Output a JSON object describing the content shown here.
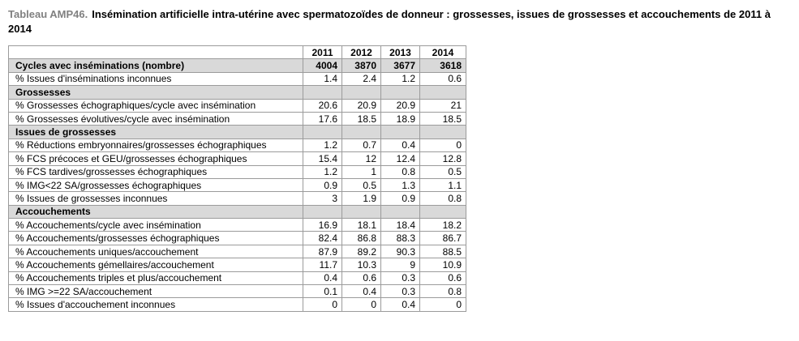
{
  "title": {
    "prefix": "Tableau AMP46.",
    "text": "Insémination artificielle intra-utérine avec spermatozoïdes de donneur : grossesses, issues de grossesses et accouchements de 2011 à 2014"
  },
  "table": {
    "header": {
      "label": "",
      "years": [
        "2011",
        "2012",
        "2013",
        "2014"
      ]
    },
    "rows": [
      {
        "type": "highlight",
        "label": "Cycles avec inséminations (nombre)",
        "values": [
          "4004",
          "3870",
          "3677",
          "3618"
        ]
      },
      {
        "type": "data",
        "label": "% Issues d'inséminations inconnues",
        "values": [
          "1.4",
          "2.4",
          "1.2",
          "0.6"
        ]
      },
      {
        "type": "section",
        "label": "Grossesses",
        "values": [
          "",
          "",
          "",
          ""
        ]
      },
      {
        "type": "data",
        "label": "% Grossesses échographiques/cycle avec insémination",
        "values": [
          "20.6",
          "20.9",
          "20.9",
          "21"
        ]
      },
      {
        "type": "data",
        "label": "% Grossesses évolutives/cycle avec insémination",
        "values": [
          "17.6",
          "18.5",
          "18.9",
          "18.5"
        ]
      },
      {
        "type": "section",
        "label": "Issues de grossesses",
        "values": [
          "",
          "",
          "",
          ""
        ]
      },
      {
        "type": "data",
        "label": "% Réductions embryonnaires/grossesses échographiques",
        "values": [
          "1.2",
          "0.7",
          "0.4",
          "0"
        ]
      },
      {
        "type": "data",
        "label": "% FCS précoces et GEU/grossesses échographiques",
        "values": [
          "15.4",
          "12",
          "12.4",
          "12.8"
        ]
      },
      {
        "type": "data",
        "label": "% FCS tardives/grossesses échographiques",
        "values": [
          "1.2",
          "1",
          "0.8",
          "0.5"
        ]
      },
      {
        "type": "data",
        "label": "% IMG<22 SA/grossesses échographiques",
        "values": [
          "0.9",
          "0.5",
          "1.3",
          "1.1"
        ]
      },
      {
        "type": "data",
        "label": "% Issues de grossesses inconnues",
        "values": [
          "3",
          "1.9",
          "0.9",
          "0.8"
        ]
      },
      {
        "type": "section",
        "label": "Accouchements",
        "values": [
          "",
          "",
          "",
          ""
        ]
      },
      {
        "type": "data",
        "label": "% Accouchements/cycle avec insémination",
        "values": [
          "16.9",
          "18.1",
          "18.4",
          "18.2"
        ]
      },
      {
        "type": "data",
        "label": "% Accouchements/grossesses échographiques",
        "values": [
          "82.4",
          "86.8",
          "88.3",
          "86.7"
        ]
      },
      {
        "type": "data",
        "label": "% Accouchements uniques/accouchement",
        "values": [
          "87.9",
          "89.2",
          "90.3",
          "88.5"
        ]
      },
      {
        "type": "data",
        "label": "% Accouchements gémellaires/accouchement",
        "values": [
          "11.7",
          "10.3",
          "9",
          "10.9"
        ]
      },
      {
        "type": "data",
        "label": "% Accouchements triples et plus/accouchement",
        "values": [
          "0.4",
          "0.6",
          "0.3",
          "0.6"
        ]
      },
      {
        "type": "data",
        "label": "% IMG >=22 SA/accouchement",
        "values": [
          "0.1",
          "0.4",
          "0.3",
          "0.8"
        ]
      },
      {
        "type": "data",
        "label": "% Issues d'accouchement inconnues",
        "values": [
          "0",
          "0",
          "0.4",
          "0"
        ]
      }
    ]
  },
  "colors": {
    "section_row_bg": "#d9d9d9",
    "table_border": "#9b9b9b",
    "title_prefix": "#808080",
    "text": "#000000",
    "page_bg": "#ffffff"
  }
}
